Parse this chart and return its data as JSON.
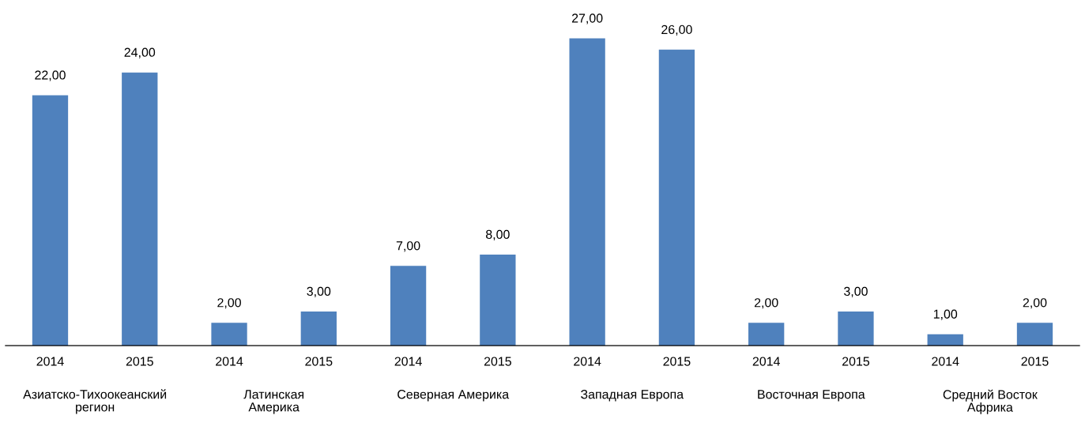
{
  "chart_data": {
    "type": "bar",
    "categories": [
      "2014",
      "2015",
      "2014",
      "2015",
      "2014",
      "2015",
      "2014",
      "2015",
      "2014",
      "2015",
      "2014",
      "2015"
    ],
    "values": [
      22,
      24,
      2,
      3,
      7,
      8,
      27,
      26,
      2,
      3,
      1,
      2
    ],
    "value_labels": [
      "22,00",
      "24,00",
      "2,00",
      "3,00",
      "7,00",
      "8,00",
      "27,00",
      "26,00",
      "2,00",
      "3,00",
      "1,00",
      "2,00"
    ],
    "color": "#4f81bd",
    "annotations": [
      "Азиатско-Тихоокеанский регион",
      "Латинская Америка",
      "Северная Америка",
      "Западная Европа",
      "Восточная Европа",
      "Средний Восток Африка"
    ],
    "grid": false,
    "legend": false
  }
}
